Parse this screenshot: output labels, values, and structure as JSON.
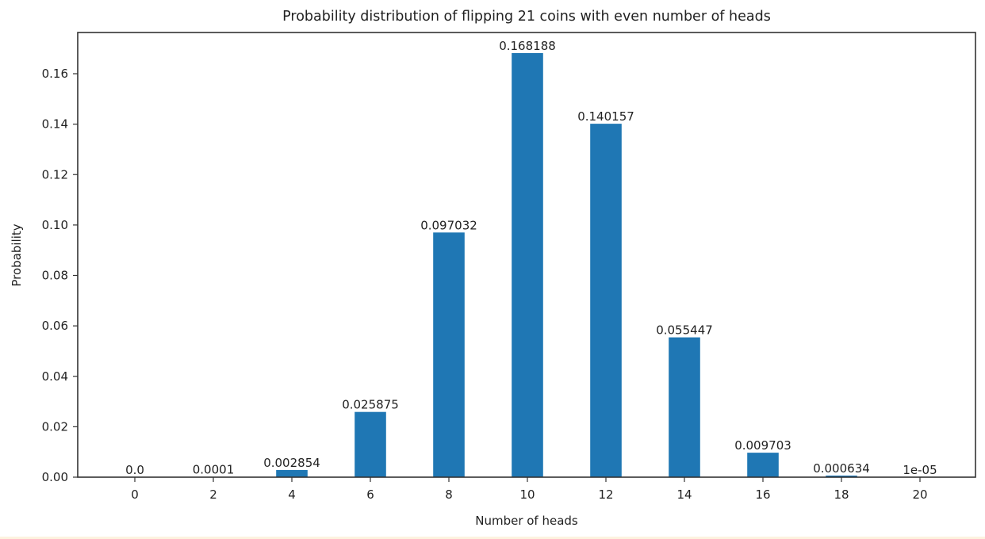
{
  "chart_data": {
    "type": "bar",
    "title": "Probability distribution of flipping 21 coins with even number of heads",
    "xlabel": "Number of heads",
    "ylabel": "Probability",
    "categories": [
      0,
      2,
      4,
      6,
      8,
      10,
      12,
      14,
      16,
      18,
      20
    ],
    "values": [
      0.0,
      0.0001,
      0.002854,
      0.025875,
      0.097032,
      0.168188,
      0.140157,
      0.055447,
      0.009703,
      0.000634,
      1e-05
    ],
    "data_labels": [
      "0.0",
      "0.0001",
      "0.002854",
      "0.025875",
      "0.097032",
      "0.168188",
      "0.140157",
      "0.055447",
      "0.009703",
      "0.000634",
      "1e-05"
    ],
    "xticks": [
      "0",
      "2",
      "4",
      "6",
      "8",
      "10",
      "12",
      "14",
      "16",
      "18",
      "20"
    ],
    "yticks": [
      "0.00",
      "0.02",
      "0.04",
      "0.06",
      "0.08",
      "0.10",
      "0.12",
      "0.14",
      "0.16"
    ],
    "ytick_values": [
      0.0,
      0.02,
      0.04,
      0.06,
      0.08,
      0.1,
      0.12,
      0.14,
      0.16
    ],
    "xlim": [
      -1.5,
      21.3
    ],
    "ylim": [
      0,
      0.1766
    ],
    "bar_width": 0.8,
    "bar_color": "#1f77b4",
    "grid": false,
    "legend": null
  }
}
